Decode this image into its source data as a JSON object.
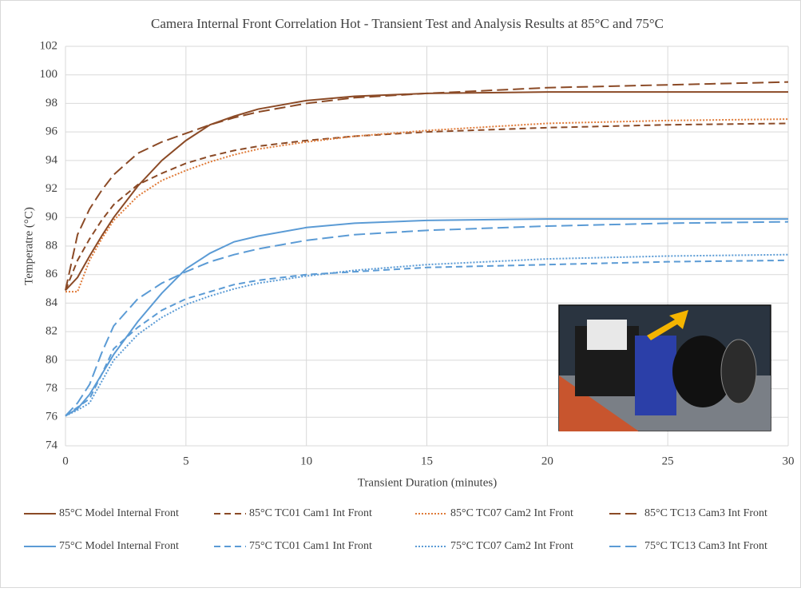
{
  "chart_data": {
    "type": "line",
    "title": "Camera Internal Front Correlation Hot - Transient Test and Analysis Results at 85°C and 75°C",
    "x_label": "Transient Duration (minutes)",
    "y_label": "Temperatre (°C)",
    "x": [
      0,
      0.5,
      1,
      1.5,
      2,
      3,
      4,
      5,
      6,
      7,
      8,
      10,
      12,
      15,
      20,
      25,
      30
    ],
    "xlim": [
      0,
      30
    ],
    "xticks": [
      0,
      5,
      10,
      15,
      20,
      25,
      30
    ],
    "ylim": [
      74,
      102
    ],
    "yticks": [
      74,
      76,
      78,
      80,
      82,
      84,
      86,
      88,
      90,
      92,
      94,
      96,
      98,
      100,
      102
    ],
    "grid": true,
    "legend": "bottom",
    "series": [
      {
        "name": "85°C Model Internal Front",
        "color": "#8b4a26",
        "dash": "solid",
        "values": [
          84.9,
          85.8,
          87.3,
          88.7,
          90.0,
          92.2,
          94.0,
          95.4,
          96.5,
          97.1,
          97.6,
          98.2,
          98.5,
          98.7,
          98.8,
          98.8,
          98.8
        ]
      },
      {
        "name": "85°C TC01 Cam1 Int Front",
        "color": "#8b4a26",
        "dash": "dashed",
        "values": [
          84.9,
          87.0,
          88.5,
          89.8,
          90.9,
          92.3,
          93.1,
          93.8,
          94.3,
          94.7,
          95.0,
          95.4,
          95.7,
          96.0,
          96.3,
          96.5,
          96.6
        ]
      },
      {
        "name": "85°C TC07 Cam2 Int Front",
        "color": "#e07b39",
        "dash": "dotted",
        "values": [
          84.8,
          84.8,
          87.0,
          88.5,
          89.8,
          91.5,
          92.6,
          93.3,
          93.9,
          94.4,
          94.8,
          95.3,
          95.7,
          96.1,
          96.6,
          96.8,
          96.9
        ]
      },
      {
        "name": "85°C TC13 Cam3 Int Front",
        "color": "#8b4a26",
        "dash": "longdash",
        "values": [
          84.9,
          88.8,
          90.6,
          91.9,
          93.0,
          94.5,
          95.3,
          95.9,
          96.5,
          97.0,
          97.4,
          98.0,
          98.4,
          98.7,
          99.1,
          99.3,
          99.5
        ]
      },
      {
        "name": "75°C Model Internal Front",
        "color": "#5b9bd5",
        "dash": "solid",
        "values": [
          76.1,
          76.6,
          77.6,
          79.0,
          80.4,
          82.7,
          84.7,
          86.4,
          87.5,
          88.3,
          88.7,
          89.3,
          89.6,
          89.8,
          89.9,
          89.9,
          89.9
        ]
      },
      {
        "name": "75°C TC01 Cam1 Int Front",
        "color": "#5b9bd5",
        "dash": "dashed",
        "values": [
          76.1,
          76.7,
          77.3,
          79.0,
          80.8,
          82.3,
          83.5,
          84.3,
          84.8,
          85.3,
          85.6,
          86.0,
          86.2,
          86.5,
          86.7,
          86.9,
          87.0
        ]
      },
      {
        "name": "75°C TC07 Cam2 Int Front",
        "color": "#5b9bd5",
        "dash": "dotted",
        "values": [
          76.1,
          76.5,
          77.0,
          78.5,
          80.0,
          81.8,
          83.0,
          83.9,
          84.5,
          85.0,
          85.4,
          85.9,
          86.3,
          86.7,
          87.1,
          87.3,
          87.4
        ]
      },
      {
        "name": "75°C TC13 Cam3 Int Front",
        "color": "#5b9bd5",
        "dash": "longdash",
        "values": [
          76.1,
          77.0,
          78.3,
          80.5,
          82.4,
          84.3,
          85.4,
          86.2,
          86.9,
          87.4,
          87.8,
          88.4,
          88.8,
          89.1,
          89.4,
          89.6,
          89.7
        ]
      }
    ]
  }
}
